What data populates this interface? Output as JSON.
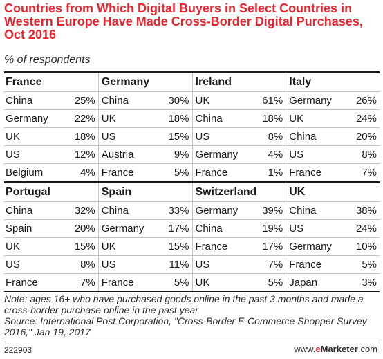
{
  "header": {
    "title": "Countries from Which Digital Buyers in Select Countries in Western Europe Have Made Cross-Border Digital Purchases, Oct 2016",
    "subtitle": "% of respondents"
  },
  "chart_data": {
    "type": "table",
    "title": "Countries from Which Digital Buyers in Select Countries in Western Europe Have Made Cross-Border Digital Purchases, Oct 2016",
    "subtitle": "% of respondents",
    "unit": "%",
    "groups": [
      {
        "country": "France",
        "rows": [
          {
            "label": "China",
            "value": 25,
            "display": "25%"
          },
          {
            "label": "Germany",
            "value": 22,
            "display": "22%"
          },
          {
            "label": "UK",
            "value": 18,
            "display": "18%"
          },
          {
            "label": "US",
            "value": 12,
            "display": "12%"
          },
          {
            "label": "Belgium",
            "value": 4,
            "display": "4%"
          }
        ]
      },
      {
        "country": "Germany",
        "rows": [
          {
            "label": "China",
            "value": 30,
            "display": "30%"
          },
          {
            "label": "UK",
            "value": 18,
            "display": "18%"
          },
          {
            "label": "US",
            "value": 15,
            "display": "15%"
          },
          {
            "label": "Austria",
            "value": 9,
            "display": "9%"
          },
          {
            "label": "France",
            "value": 5,
            "display": "5%"
          }
        ]
      },
      {
        "country": "Ireland",
        "rows": [
          {
            "label": "UK",
            "value": 61,
            "display": "61%"
          },
          {
            "label": "China",
            "value": 18,
            "display": "18%"
          },
          {
            "label": "US",
            "value": 8,
            "display": "8%"
          },
          {
            "label": "Germany",
            "value": 4,
            "display": "4%"
          },
          {
            "label": "France",
            "value": 1,
            "display": "1%"
          }
        ]
      },
      {
        "country": "Italy",
        "rows": [
          {
            "label": "Germany",
            "value": 26,
            "display": "26%"
          },
          {
            "label": "UK",
            "value": 24,
            "display": "24%"
          },
          {
            "label": "China",
            "value": 20,
            "display": "20%"
          },
          {
            "label": "US",
            "value": 8,
            "display": "8%"
          },
          {
            "label": "France",
            "value": 7,
            "display": "7%"
          }
        ]
      },
      {
        "country": "Portugal",
        "rows": [
          {
            "label": "China",
            "value": 32,
            "display": "32%"
          },
          {
            "label": "Spain",
            "value": 20,
            "display": "20%"
          },
          {
            "label": "UK",
            "value": 15,
            "display": "15%"
          },
          {
            "label": "US",
            "value": 8,
            "display": "8%"
          },
          {
            "label": "France",
            "value": 7,
            "display": "7%"
          }
        ]
      },
      {
        "country": "Spain",
        "rows": [
          {
            "label": "China",
            "value": 33,
            "display": "33%"
          },
          {
            "label": "Germany",
            "value": 17,
            "display": "17%"
          },
          {
            "label": "UK",
            "value": 15,
            "display": "15%"
          },
          {
            "label": "US",
            "value": 11,
            "display": "11%"
          },
          {
            "label": "France",
            "value": 5,
            "display": "5%"
          }
        ]
      },
      {
        "country": "Switzerland",
        "rows": [
          {
            "label": "Germany",
            "value": 39,
            "display": "39%"
          },
          {
            "label": "China",
            "value": 19,
            "display": "19%"
          },
          {
            "label": "France",
            "value": 17,
            "display": "17%"
          },
          {
            "label": "US",
            "value": 7,
            "display": "7%"
          },
          {
            "label": "UK",
            "value": 5,
            "display": "5%"
          }
        ]
      },
      {
        "country": "UK",
        "rows": [
          {
            "label": "China",
            "value": 38,
            "display": "38%"
          },
          {
            "label": "US",
            "value": 24,
            "display": "24%"
          },
          {
            "label": "Germany",
            "value": 10,
            "display": "10%"
          },
          {
            "label": "France",
            "value": 5,
            "display": "5%"
          },
          {
            "label": "Japan",
            "value": 3,
            "display": "3%"
          }
        ]
      }
    ]
  },
  "footer": {
    "note": "Note: ages 16+ who have purchased goods online in the past 3 months and made a cross-border purchase online in the past year",
    "source": "Source: International Post Corporation, \"Cross-Border E-Commerce Shopper Survey 2016,\" Jan 19, 2017",
    "chart_id": "222903",
    "brand_prefix": "www.",
    "brand_e": "e",
    "brand_name": "Marketer",
    "brand_suffix": ".com"
  },
  "colors": {
    "title": "#e8262f",
    "text": "#1a1a1a",
    "rule": "#c4c4c4"
  }
}
